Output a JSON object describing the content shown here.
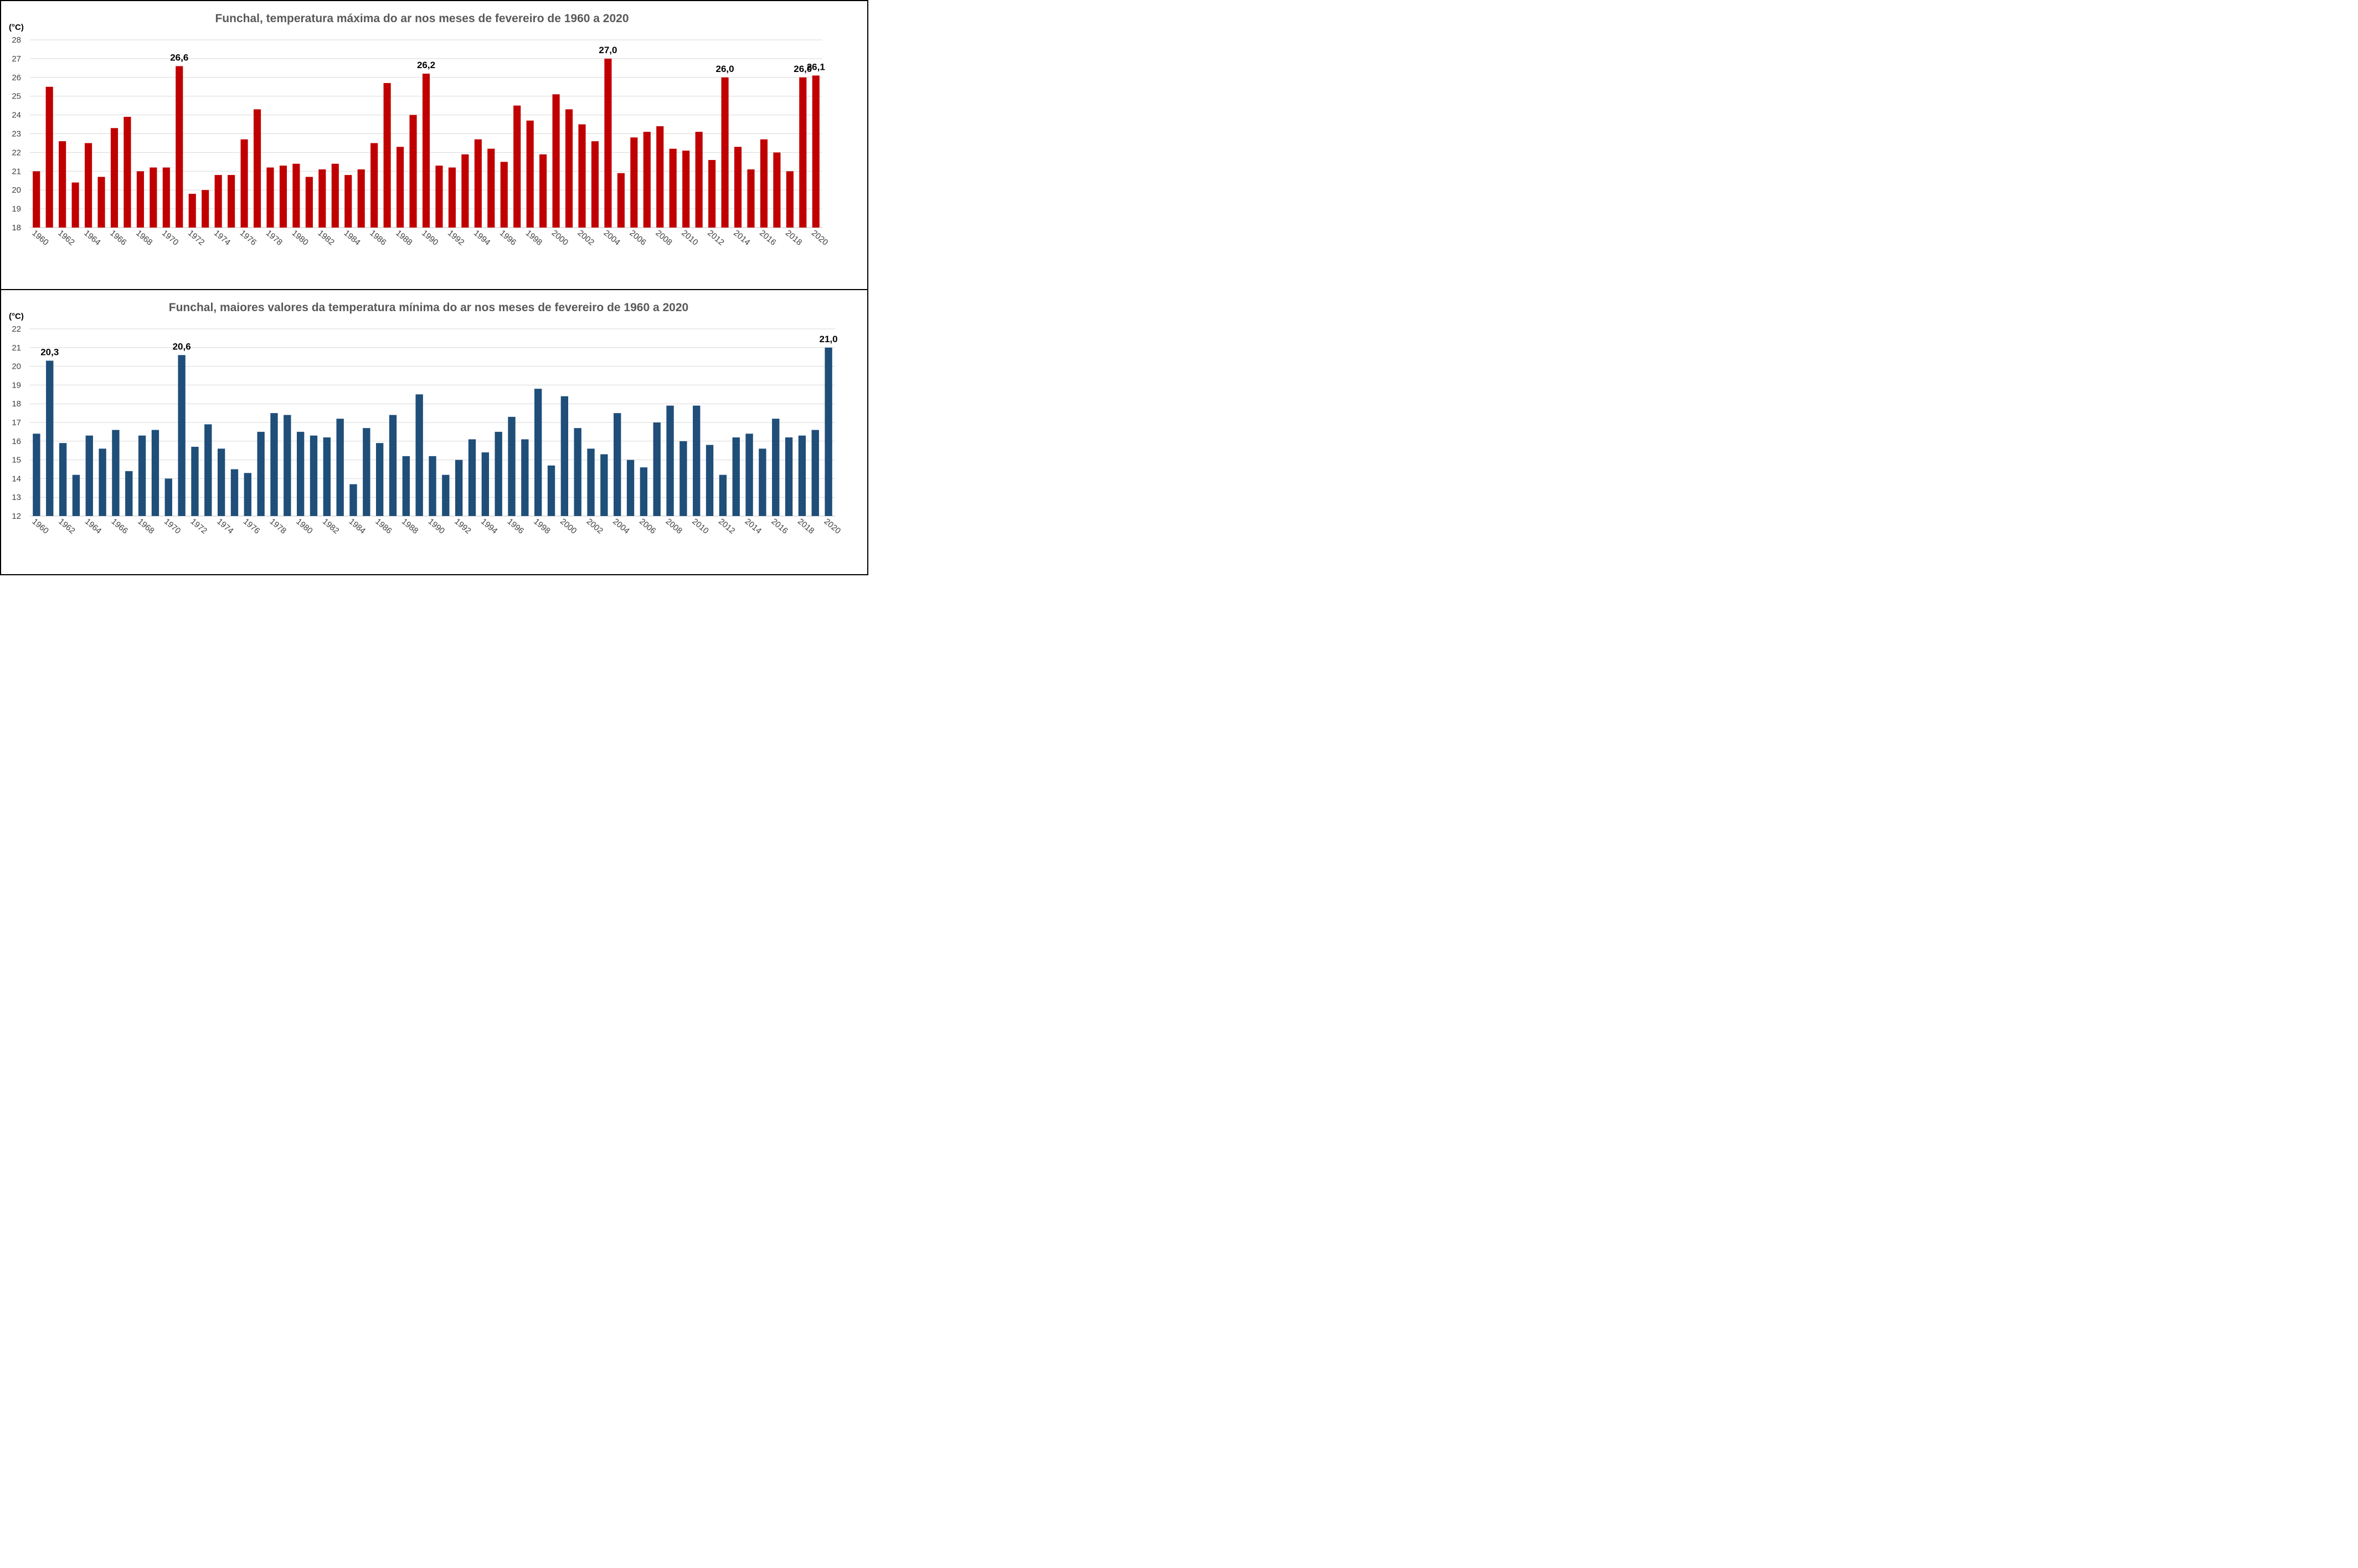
{
  "chart_data": [
    {
      "type": "bar",
      "title": "Funchal, temperatura máxima do ar nos meses de fevereiro de 1960 a 2020",
      "ylabel": "(°C)",
      "xlabel": "",
      "ylim": [
        18,
        28
      ],
      "yticks": [
        18,
        19,
        20,
        21,
        22,
        23,
        24,
        25,
        26,
        27,
        28
      ],
      "x_tick_labels": [
        "1960",
        "1962",
        "1964",
        "1966",
        "1968",
        "1970",
        "1972",
        "1974",
        "1976",
        "1978",
        "1980",
        "1982",
        "1984",
        "1986",
        "1988",
        "1990",
        "1992",
        "1994",
        "1996",
        "1998",
        "2000",
        "2002",
        "2004",
        "2006",
        "2008",
        "2010",
        "2012",
        "2014",
        "2016",
        "2018",
        "2020"
      ],
      "grid": true,
      "color": "#c00000",
      "categories": [
        "1960",
        "1961",
        "1962",
        "1963",
        "1964",
        "1965",
        "1966",
        "1967",
        "1968",
        "1969",
        "1970",
        "1971",
        "1972",
        "1973",
        "1974",
        "1975",
        "1976",
        "1977",
        "1978",
        "1979",
        "1980",
        "1981",
        "1982",
        "1983",
        "1984",
        "1985",
        "1986",
        "1987",
        "1988",
        "1989",
        "1990",
        "1991",
        "1992",
        "1993",
        "1994",
        "1995",
        "1996",
        "1997",
        "1998",
        "1999",
        "2000",
        "2001",
        "2002",
        "2003",
        "2004",
        "2005",
        "2006",
        "2007",
        "2008",
        "2009",
        "2010",
        "2011",
        "2012",
        "2013",
        "2014",
        "2015",
        "2016",
        "2017",
        "2018",
        "2019",
        "2020"
      ],
      "values": [
        21.0,
        25.5,
        22.6,
        20.4,
        22.5,
        20.7,
        23.3,
        23.9,
        21.0,
        21.2,
        21.2,
        26.6,
        19.8,
        20.0,
        20.8,
        20.8,
        22.7,
        24.3,
        21.2,
        21.3,
        21.4,
        20.7,
        21.1,
        21.4,
        20.8,
        21.1,
        22.5,
        25.7,
        22.3,
        24.0,
        26.2,
        21.3,
        21.2,
        21.9,
        22.7,
        22.2,
        21.5,
        24.5,
        23.7,
        21.9,
        25.1,
        24.3,
        23.5,
        22.6,
        27.0,
        20.9,
        22.8,
        23.1,
        23.4,
        22.2,
        22.1,
        23.1,
        21.6,
        26.0,
        22.3,
        21.1,
        22.7,
        22.0,
        21.0,
        26.0,
        26.1
      ],
      "data_labels": [
        {
          "year": "1971",
          "text": "26,6"
        },
        {
          "year": "1990",
          "text": "26,2"
        },
        {
          "year": "2004",
          "text": "27,0"
        },
        {
          "year": "2013",
          "text": "26,0"
        },
        {
          "year": "2019",
          "text": "26,0"
        },
        {
          "year": "2020",
          "text": "26,1"
        }
      ]
    },
    {
      "type": "bar",
      "title": "Funchal, maiores valores da temperatura mínima do ar nos meses de fevereiro de 1960 a 2020",
      "ylabel": "(°C)",
      "xlabel": "",
      "ylim": [
        12,
        22
      ],
      "yticks": [
        12,
        13,
        14,
        15,
        16,
        17,
        18,
        19,
        20,
        21,
        22
      ],
      "x_tick_labels": [
        "1960",
        "1962",
        "1964",
        "1966",
        "1968",
        "1970",
        "1972",
        "1974",
        "1976",
        "1978",
        "1980",
        "1982",
        "1984",
        "1986",
        "1988",
        "1990",
        "1992",
        "1994",
        "1996",
        "1998",
        "2000",
        "2002",
        "2004",
        "2006",
        "2008",
        "2010",
        "2012",
        "2014",
        "2016",
        "2018",
        "2020"
      ],
      "grid": true,
      "color": "#1f4e79",
      "categories": [
        "1960",
        "1961",
        "1962",
        "1963",
        "1964",
        "1965",
        "1966",
        "1967",
        "1968",
        "1969",
        "1970",
        "1971",
        "1972",
        "1973",
        "1974",
        "1975",
        "1976",
        "1977",
        "1978",
        "1979",
        "1980",
        "1981",
        "1982",
        "1983",
        "1984",
        "1985",
        "1986",
        "1987",
        "1988",
        "1989",
        "1990",
        "1991",
        "1992",
        "1993",
        "1994",
        "1995",
        "1996",
        "1997",
        "1998",
        "1999",
        "2000",
        "2001",
        "2002",
        "2003",
        "2004",
        "2005",
        "2006",
        "2007",
        "2008",
        "2009",
        "2010",
        "2011",
        "2012",
        "2013",
        "2014",
        "2015",
        "2016",
        "2017",
        "2018",
        "2019",
        "2020"
      ],
      "values": [
        16.4,
        20.3,
        15.9,
        14.2,
        16.3,
        15.6,
        16.6,
        14.4,
        16.3,
        16.6,
        14.0,
        20.6,
        15.7,
        16.9,
        15.6,
        14.5,
        14.3,
        16.5,
        17.5,
        17.4,
        16.5,
        16.3,
        16.2,
        17.2,
        13.7,
        16.7,
        15.9,
        17.4,
        15.2,
        18.5,
        15.2,
        14.2,
        15.0,
        16.1,
        15.4,
        16.5,
        17.3,
        16.1,
        18.8,
        14.7,
        18.4,
        16.7,
        15.6,
        15.3,
        17.5,
        15.0,
        14.6,
        17.0,
        17.9,
        16.0,
        17.9,
        15.8,
        14.2,
        16.2,
        16.4,
        15.6,
        17.2,
        16.2,
        16.3,
        16.6,
        21.0
      ],
      "data_labels": [
        {
          "year": "1961",
          "text": "20,3"
        },
        {
          "year": "1971",
          "text": "20,6"
        },
        {
          "year": "2020",
          "text": "21,0"
        }
      ]
    }
  ]
}
